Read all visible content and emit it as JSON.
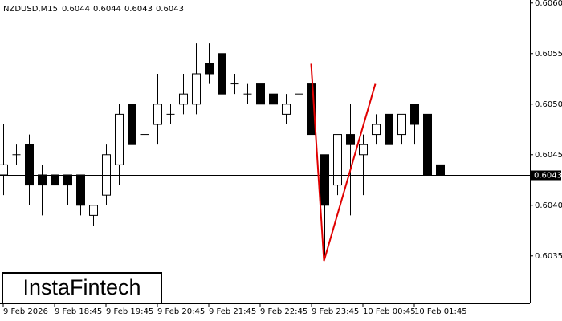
{
  "chart_data": {
    "type": "candlestick",
    "title": "NZDUSD,M15",
    "logo": "InstaFintech",
    "categories": [
      "9 Feb 2026",
      null,
      null,
      null,
      "9 Feb 18:45",
      null,
      null,
      null,
      "9 Feb 19:45",
      null,
      null,
      null,
      "9 Feb 20:45",
      null,
      null,
      null,
      "9 Feb 21:45",
      null,
      null,
      null,
      "9 Feb 22:45",
      null,
      null,
      null,
      "9 Feb 23:45",
      null,
      null,
      null,
      "10 Feb 00:45",
      null,
      null,
      null,
      "10 Feb 01:45",
      null,
      null
    ],
    "open": [
      0.6043,
      0.6045,
      0.6046,
      0.6043,
      0.6043,
      0.6043,
      0.6043,
      0.6039,
      0.6041,
      0.6044,
      0.605,
      0.6047,
      0.6048,
      0.6049,
      0.605,
      0.605,
      0.6054,
      0.6055,
      0.6052,
      0.6051,
      0.6052,
      0.6051,
      0.6049,
      0.6051,
      0.6052,
      0.6045,
      0.6042,
      0.6047,
      0.6045,
      0.6047,
      0.6049,
      0.6047,
      0.605,
      0.6049,
      0.6044
    ],
    "high": [
      0.6048,
      0.6046,
      0.6047,
      0.6044,
      0.6043,
      0.6043,
      0.6043,
      0.604,
      0.6046,
      0.605,
      0.605,
      0.6048,
      0.6053,
      0.605,
      0.6053,
      0.6056,
      0.6056,
      0.6056,
      0.6053,
      0.6052,
      0.6052,
      0.6051,
      0.6051,
      0.6052,
      0.6052,
      0.6045,
      0.6047,
      0.605,
      0.6047,
      0.6049,
      0.605,
      0.6049,
      0.605,
      0.6049,
      0.6044
    ],
    "low": [
      0.6041,
      0.6044,
      0.604,
      0.6039,
      0.6039,
      0.604,
      0.6039,
      0.6038,
      0.604,
      0.6042,
      0.604,
      0.6045,
      0.6046,
      0.6048,
      0.6049,
      0.6049,
      0.6052,
      0.6051,
      0.6051,
      0.605,
      0.605,
      0.605,
      0.6048,
      0.6045,
      0.6047,
      0.6035,
      0.6041,
      0.6039,
      0.6041,
      0.6046,
      0.6046,
      0.6046,
      0.6046,
      0.6043,
      0.6043
    ],
    "close": [
      0.6044,
      0.6045,
      0.6042,
      0.6042,
      0.6042,
      0.6042,
      0.604,
      0.604,
      0.6045,
      0.6049,
      0.6046,
      0.6047,
      0.605,
      0.6049,
      0.6051,
      0.6053,
      0.6053,
      0.6051,
      0.6052,
      0.6051,
      0.605,
      0.605,
      0.605,
      0.6051,
      0.6047,
      0.604,
      0.6047,
      0.6046,
      0.6046,
      0.6048,
      0.6046,
      0.6049,
      0.6048,
      0.6043,
      0.6043
    ],
    "pattern": {
      "color": "#e00000",
      "x": [
        24,
        25,
        29
      ],
      "values": [
        0.6054,
        0.60345,
        0.6052
      ]
    },
    "ylim": [
      0.60303,
      0.60603
    ],
    "yticks": [
      0.6035,
      {
        "value": 0.604,
        "label": "0.6040"
      },
      0.6045,
      {
        "value": 0.605,
        "label": "0.6050"
      },
      0.6055,
      {
        "value": 0.606,
        "label": "0.6060"
      }
    ]
  }
}
